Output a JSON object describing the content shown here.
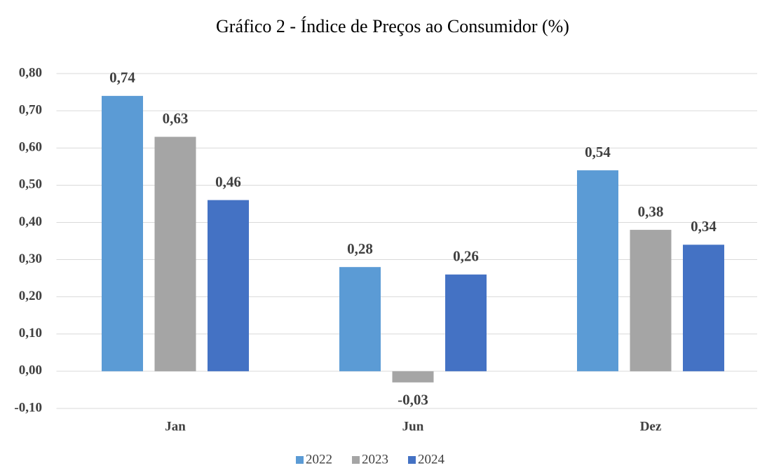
{
  "chart_data": {
    "type": "bar",
    "title": "Gráfico 2 - Índice de Preços ao Consumidor (%)",
    "categories": [
      "Jan",
      "Jun",
      "Dez"
    ],
    "series": [
      {
        "name": "2022",
        "color": "#5b9bd5",
        "values": [
          0.74,
          0.28,
          0.54
        ],
        "value_labels": [
          "0,74",
          "0,28",
          "0,54"
        ]
      },
      {
        "name": "2023",
        "color": "#a5a5a5",
        "values": [
          0.63,
          -0.03,
          0.38
        ],
        "value_labels": [
          "0,63",
          "-0,03",
          "0,38"
        ]
      },
      {
        "name": "2024",
        "color": "#4472c4",
        "values": [
          0.46,
          0.26,
          0.34
        ],
        "value_labels": [
          "0,46",
          "0,26",
          "0,34"
        ]
      }
    ],
    "ylim": [
      -0.1,
      0.8
    ],
    "yticks": [
      {
        "value": -0.1,
        "label": "-0,10"
      },
      {
        "value": 0,
        "label": "0,00"
      },
      {
        "value": 0.1,
        "label": "0,10"
      },
      {
        "value": 0.2,
        "label": "0,20"
      },
      {
        "value": 0.3,
        "label": "0,30"
      },
      {
        "value": 0.4,
        "label": "0,40"
      },
      {
        "value": 0.5,
        "label": "0,50"
      },
      {
        "value": 0.6,
        "label": "0,60"
      },
      {
        "value": 0.7,
        "label": "0,70"
      },
      {
        "value": 0.8,
        "label": "0,80"
      }
    ],
    "grid": true,
    "legend": "bottom"
  }
}
